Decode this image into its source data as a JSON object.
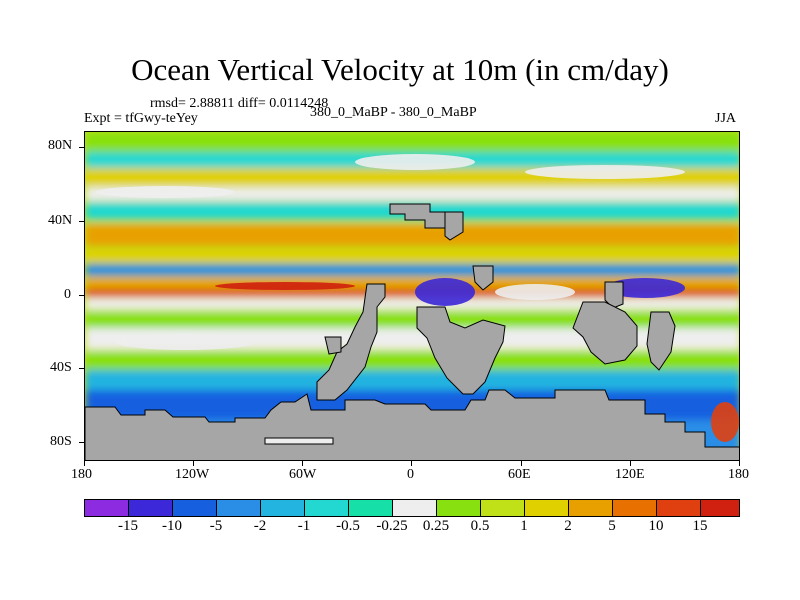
{
  "title": "Ocean Vertical Velocity at 10m (in cm/day)",
  "stats": {
    "rmsd_diff": "rmsd= 2.88811 diff= 0.0114248",
    "experiment": "Expt = tfGwy-teYey",
    "comparison": "380_0_MaBP - 380_0_MaBP",
    "season": "JJA"
  },
  "y_axis": {
    "ticks": [
      "80N",
      "40N",
      "0",
      "40S",
      "80S"
    ]
  },
  "x_axis": {
    "ticks": [
      "180",
      "120W",
      "60W",
      "0",
      "60E",
      "120E",
      "180"
    ]
  },
  "colorbar": {
    "labels": [
      "-15",
      "-10",
      "-5",
      "-2",
      "-1",
      "-0.5",
      "-0.25",
      "0.25",
      "0.5",
      "1",
      "2",
      "5",
      "10",
      "15"
    ],
    "colors": [
      "#8c2be0",
      "#3c28d8",
      "#1660e0",
      "#2a8ee6",
      "#24b4e0",
      "#22d8d0",
      "#16e0a8",
      "#eeeeee",
      "#88e010",
      "#c0e018",
      "#e0d000",
      "#e8a000",
      "#e87000",
      "#e04010",
      "#d02010"
    ]
  },
  "map_colors": {
    "land": "#a6a6a6",
    "missing": "#ffffff"
  }
}
